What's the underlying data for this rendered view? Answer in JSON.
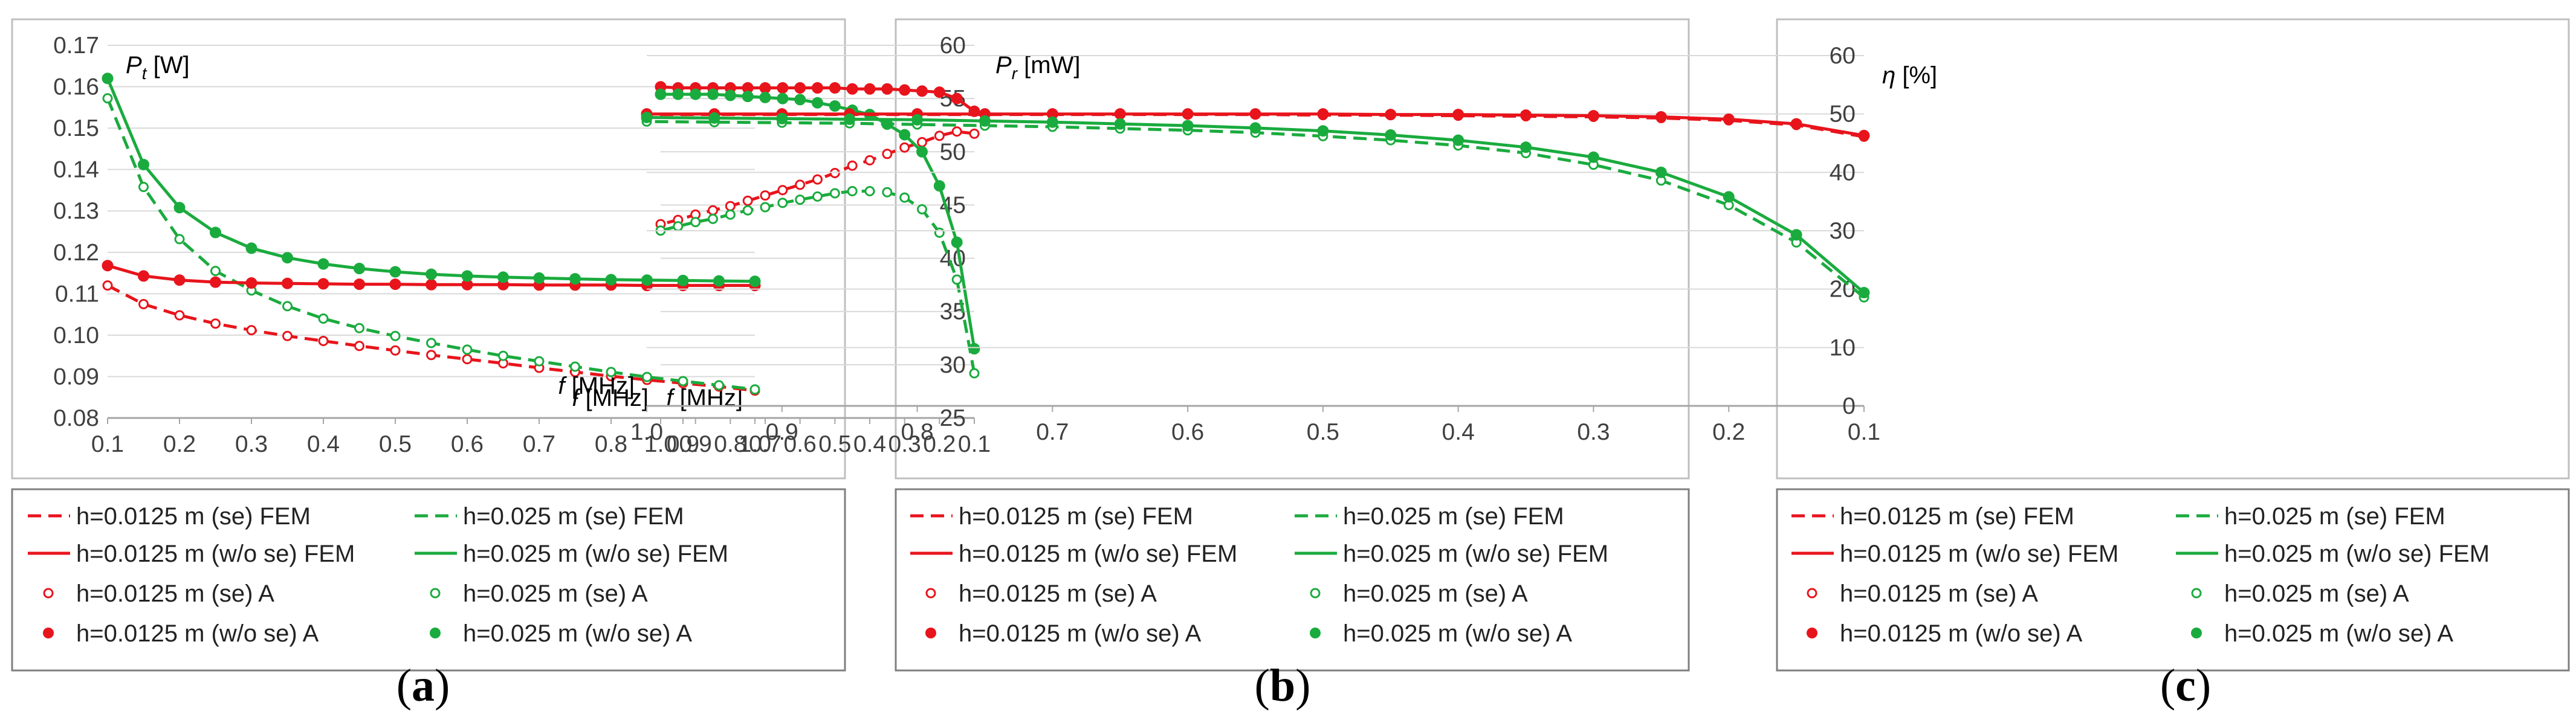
{
  "chart_data": [
    {
      "type": "line",
      "panel_label": "(a)",
      "ylabel": {
        "symbol": "P",
        "sub": "t",
        "unit": "[W]"
      },
      "xlabel": {
        "symbol": "f",
        "unit": "[MHz]"
      },
      "xlim": [
        0.1,
        1.0
      ],
      "ylim": [
        0.08,
        0.17
      ],
      "x_ticks": [
        "0.1",
        "0.2",
        "0.3",
        "0.4",
        "0.5",
        "0.6",
        "0.7",
        "0.8",
        "0.9",
        "1.0"
      ],
      "y_ticks": [
        "0.08",
        "0.09",
        "0.10",
        "0.11",
        "0.12",
        "0.13",
        "0.14",
        "0.15",
        "0.16",
        "0.17"
      ],
      "grid": "horizontal",
      "x": [
        0.1,
        0.15,
        0.2,
        0.25,
        0.3,
        0.35,
        0.4,
        0.45,
        0.5,
        0.55,
        0.6,
        0.65,
        0.7,
        0.75,
        0.8,
        0.85,
        0.9,
        0.95,
        1.0
      ],
      "series": [
        {
          "name": "h=0.0125 m (se) FEM",
          "color": "#e8141c",
          "line": "dashed",
          "marker": "none",
          "values": [
            0.112,
            0.1075,
            0.1048,
            0.1028,
            0.1012,
            0.0998,
            0.0986,
            0.0974,
            0.0963,
            0.0952,
            0.0942,
            0.0932,
            0.0921,
            0.0911,
            0.0901,
            0.0892,
            0.0884,
            0.0876,
            0.0866
          ]
        },
        {
          "name": "h=0.025 m (se) FEM",
          "color": "#1aab3e",
          "line": "dashed",
          "marker": "none",
          "values": [
            0.1572,
            0.1358,
            0.1232,
            0.1155,
            0.1108,
            0.107,
            0.104,
            0.1017,
            0.0998,
            0.0981,
            0.0965,
            0.095,
            0.0937,
            0.0924,
            0.0911,
            0.0899,
            0.0889,
            0.0879,
            0.0869
          ]
        },
        {
          "name": "h=0.0125 m (w/o se) FEM",
          "color": "#e8141c",
          "line": "solid",
          "marker": "none",
          "values": [
            0.1168,
            0.1143,
            0.1133,
            0.1128,
            0.1126,
            0.1125,
            0.1124,
            0.1123,
            0.1123,
            0.1122,
            0.1122,
            0.1122,
            0.1121,
            0.1121,
            0.1121,
            0.112,
            0.112,
            0.112,
            0.112
          ]
        },
        {
          "name": "h=0.025 m (w/o se) FEM",
          "color": "#1aab3e",
          "line": "solid",
          "marker": "none",
          "values": [
            0.162,
            0.1412,
            0.1308,
            0.1248,
            0.121,
            0.1187,
            0.1172,
            0.1161,
            0.1153,
            0.1147,
            0.1143,
            0.114,
            0.1138,
            0.1136,
            0.1134,
            0.1133,
            0.1132,
            0.1131,
            0.113
          ]
        },
        {
          "name": "h=0.0125 m (se) A",
          "color": "#e8141c",
          "line": "none",
          "marker": "open",
          "values": [
            0.112,
            0.1075,
            0.1048,
            0.1028,
            0.1012,
            0.0998,
            0.0986,
            0.0974,
            0.0963,
            0.0952,
            0.0942,
            0.0932,
            0.0921,
            0.0911,
            0.0901,
            0.0892,
            0.0884,
            0.0876,
            0.0866
          ]
        },
        {
          "name": "h=0.025 m (se) A",
          "color": "#1aab3e",
          "line": "none",
          "marker": "open",
          "values": [
            0.1572,
            0.1358,
            0.1232,
            0.1155,
            0.1108,
            0.107,
            0.104,
            0.1017,
            0.0998,
            0.0981,
            0.0965,
            0.095,
            0.0937,
            0.0924,
            0.0911,
            0.0899,
            0.0889,
            0.0879,
            0.0869
          ]
        },
        {
          "name": "h=0.0125 m (w/o se) A",
          "color": "#e8141c",
          "line": "none",
          "marker": "filled",
          "values": [
            0.1168,
            0.1143,
            0.1133,
            0.1128,
            0.1126,
            0.1125,
            0.1124,
            0.1123,
            0.1123,
            0.1122,
            0.1122,
            0.1122,
            0.1121,
            0.1121,
            0.1121,
            0.112,
            0.112,
            0.112,
            0.112
          ]
        },
        {
          "name": "h=0.025 m (w/o se) A",
          "color": "#1aab3e",
          "line": "none",
          "marker": "filled",
          "values": [
            0.162,
            0.1412,
            0.1308,
            0.1248,
            0.121,
            0.1187,
            0.1172,
            0.1161,
            0.1153,
            0.1147,
            0.1143,
            0.114,
            0.1138,
            0.1136,
            0.1134,
            0.1133,
            0.1132,
            0.1131,
            0.113
          ]
        }
      ]
    },
    {
      "type": "line",
      "panel_label": "(b)",
      "ylabel": {
        "symbol": "P",
        "sub": "r",
        "unit": "[mW]"
      },
      "xlabel": {
        "symbol": "f",
        "unit": "[MHz]"
      },
      "xlim": [
        0.1,
        1.0
      ],
      "ylim": [
        25,
        60
      ],
      "x_ticks": [
        "0.1",
        "0.2",
        "0.3",
        "0.4",
        "0.5",
        "0.6",
        "0.7",
        "0.8",
        "0.9",
        "1.0"
      ],
      "y_ticks": [
        "25",
        "30",
        "35",
        "40",
        "45",
        "50",
        "55",
        "60"
      ],
      "grid": "horizontal",
      "x": [
        0.1,
        0.15,
        0.2,
        0.25,
        0.3,
        0.35,
        0.4,
        0.45,
        0.5,
        0.55,
        0.6,
        0.65,
        0.7,
        0.75,
        0.8,
        0.85,
        0.9,
        0.95,
        1.0
      ],
      "series": [
        {
          "name": "h=0.0125 m (se) FEM",
          "color": "#e8141c",
          "line": "dashed",
          "marker": "none",
          "values": [
            51.7,
            51.9,
            51.5,
            50.9,
            50.4,
            49.8,
            49.2,
            48.7,
            48.0,
            47.4,
            46.9,
            46.4,
            45.9,
            45.4,
            44.9,
            44.5,
            44.1,
            43.6,
            43.2
          ]
        },
        {
          "name": "h=0.025 m (se) FEM",
          "color": "#1aab3e",
          "line": "dashed",
          "marker": "none",
          "values": [
            29.2,
            38.0,
            42.4,
            44.6,
            45.7,
            46.2,
            46.3,
            46.3,
            46.1,
            45.8,
            45.5,
            45.2,
            44.8,
            44.5,
            44.1,
            43.7,
            43.4,
            43.0,
            42.6
          ]
        },
        {
          "name": "h=0.0125 m (w/o se) FEM",
          "color": "#e8141c",
          "line": "solid",
          "marker": "none",
          "values": [
            53.8,
            55.0,
            55.6,
            55.7,
            55.8,
            55.9,
            55.9,
            55.9,
            56.0,
            56.0,
            56.0,
            56.0,
            56.0,
            56.0,
            56.0,
            56.0,
            56.0,
            56.0,
            56.1
          ]
        },
        {
          "name": "h=0.025 m (w/o se) FEM",
          "color": "#1aab3e",
          "line": "solid",
          "marker": "none",
          "values": [
            31.5,
            41.5,
            46.8,
            50.0,
            51.6,
            52.6,
            53.5,
            53.9,
            54.3,
            54.6,
            54.9,
            55.0,
            55.1,
            55.2,
            55.3,
            55.4,
            55.4,
            55.4,
            55.4
          ]
        },
        {
          "name": "h=0.0125 m (se) A",
          "color": "#e8141c",
          "line": "none",
          "marker": "open",
          "values": [
            51.7,
            51.9,
            51.5,
            50.9,
            50.4,
            49.8,
            49.2,
            48.7,
            48.0,
            47.4,
            46.9,
            46.4,
            45.9,
            45.4,
            44.9,
            44.5,
            44.1,
            43.6,
            43.2
          ]
        },
        {
          "name": "h=0.025 m (se) A",
          "color": "#1aab3e",
          "line": "none",
          "marker": "open",
          "values": [
            29.2,
            38.0,
            42.4,
            44.6,
            45.7,
            46.2,
            46.3,
            46.3,
            46.1,
            45.8,
            45.5,
            45.2,
            44.8,
            44.5,
            44.1,
            43.7,
            43.4,
            43.0,
            42.6
          ]
        },
        {
          "name": "h=0.0125 m (w/o se) A",
          "color": "#e8141c",
          "line": "none",
          "marker": "filled",
          "values": [
            53.8,
            55.0,
            55.6,
            55.7,
            55.8,
            55.9,
            55.9,
            55.9,
            56.0,
            56.0,
            56.0,
            56.0,
            56.0,
            56.0,
            56.0,
            56.0,
            56.0,
            56.0,
            56.1
          ]
        },
        {
          "name": "h=0.025 m (w/o se) A",
          "color": "#1aab3e",
          "line": "none",
          "marker": "filled",
          "values": [
            31.5,
            41.5,
            46.8,
            50.0,
            51.6,
            52.6,
            53.5,
            53.9,
            54.3,
            54.6,
            54.9,
            55.0,
            55.1,
            55.2,
            55.3,
            55.4,
            55.4,
            55.4,
            55.4
          ]
        }
      ]
    },
    {
      "type": "line",
      "panel_label": "(c)",
      "ylabel": {
        "symbol": "η",
        "sub": "",
        "unit": "[%]"
      },
      "xlabel": {
        "symbol": "f",
        "unit": "[MHz]"
      },
      "xlim": [
        0.1,
        1.0
      ],
      "ylim": [
        0,
        60
      ],
      "x_ticks": [
        "0.1",
        "0.2",
        "0.3",
        "0.4",
        "0.5",
        "0.6",
        "0.7",
        "0.8",
        "0.9",
        "1.0"
      ],
      "y_ticks": [
        "0",
        "10",
        "20",
        "30",
        "40",
        "50",
        "60"
      ],
      "grid": "horizontal",
      "x": [
        0.1,
        0.15,
        0.2,
        0.25,
        0.3,
        0.35,
        0.4,
        0.45,
        0.5,
        0.55,
        0.6,
        0.65,
        0.7,
        0.75,
        0.8,
        0.85,
        0.9,
        0.95,
        1.0
      ],
      "series": [
        {
          "name": "h=0.0125 m (se) FEM",
          "color": "#e8141c",
          "line": "dashed",
          "marker": "none",
          "values": [
            46.1,
            48.1,
            48.9,
            49.3,
            49.5,
            49.6,
            49.7,
            49.8,
            49.8,
            49.9,
            49.9,
            49.9,
            49.9,
            49.9,
            49.9,
            49.9,
            49.9,
            49.9,
            49.9
          ]
        },
        {
          "name": "h=0.025 m (se) FEM",
          "color": "#1aab3e",
          "line": "dashed",
          "marker": "none",
          "values": [
            18.6,
            28.0,
            34.4,
            38.6,
            41.3,
            43.3,
            44.6,
            45.5,
            46.2,
            46.8,
            47.2,
            47.5,
            47.8,
            48.0,
            48.2,
            48.4,
            48.5,
            48.6,
            48.7
          ]
        },
        {
          "name": "h=0.0125 m (w/o se) FEM",
          "color": "#e8141c",
          "line": "solid",
          "marker": "none",
          "values": [
            46.3,
            48.3,
            49.1,
            49.5,
            49.7,
            49.8,
            49.9,
            49.9,
            50.0,
            50.0,
            50.0,
            50.0,
            50.0,
            50.0,
            50.0,
            50.0,
            50.0,
            50.0,
            50.0
          ]
        },
        {
          "name": "h=0.025 m (w/o se) FEM",
          "color": "#1aab3e",
          "line": "solid",
          "marker": "none",
          "values": [
            19.4,
            29.3,
            35.8,
            40.0,
            42.6,
            44.3,
            45.5,
            46.4,
            47.1,
            47.6,
            48.0,
            48.3,
            48.6,
            48.8,
            49.0,
            49.1,
            49.2,
            49.3,
            49.4
          ]
        },
        {
          "name": "h=0.0125 m (se) A",
          "color": "#e8141c",
          "line": "none",
          "marker": "open",
          "values": [
            46.1,
            48.1,
            48.9,
            49.3,
            49.5,
            49.6,
            49.7,
            49.8,
            49.8,
            49.9,
            49.9,
            49.9,
            49.9,
            49.9,
            49.9,
            49.9,
            49.9,
            49.9,
            49.9
          ]
        },
        {
          "name": "h=0.025 m (se) A",
          "color": "#1aab3e",
          "line": "none",
          "marker": "open",
          "values": [
            18.6,
            28.0,
            34.4,
            38.6,
            41.3,
            43.3,
            44.6,
            45.5,
            46.2,
            46.8,
            47.2,
            47.5,
            47.8,
            48.0,
            48.2,
            48.4,
            48.5,
            48.6,
            48.7
          ]
        },
        {
          "name": "h=0.0125 m (w/o se) A",
          "color": "#e8141c",
          "line": "none",
          "marker": "filled",
          "values": [
            46.3,
            48.3,
            49.1,
            49.5,
            49.7,
            49.8,
            49.9,
            49.9,
            50.0,
            50.0,
            50.0,
            50.0,
            50.0,
            50.0,
            50.0,
            50.0,
            50.0,
            50.0,
            50.0
          ]
        },
        {
          "name": "h=0.025 m (w/o se) A",
          "color": "#1aab3e",
          "line": "none",
          "marker": "filled",
          "values": [
            19.4,
            29.3,
            35.8,
            40.0,
            42.6,
            44.3,
            45.5,
            46.4,
            47.1,
            47.6,
            48.0,
            48.3,
            48.6,
            48.8,
            49.0,
            49.1,
            49.2,
            49.3,
            49.4
          ]
        }
      ]
    }
  ],
  "legend_entries": [
    "h=0.0125 m (se) FEM",
    "h=0.025 m (se) FEM",
    "h=0.0125 m (w/o se) FEM",
    "h=0.025 m (w/o se) FEM",
    "h=0.0125 m (se) A",
    "h=0.025 m (se) A",
    "h=0.0125 m (w/o se) A",
    "h=0.025 m (w/o se) A"
  ],
  "colors": {
    "red": "#e8141c",
    "green": "#1aab3e",
    "grid": "#d9d9d9",
    "frame": "#bfbfbf"
  }
}
